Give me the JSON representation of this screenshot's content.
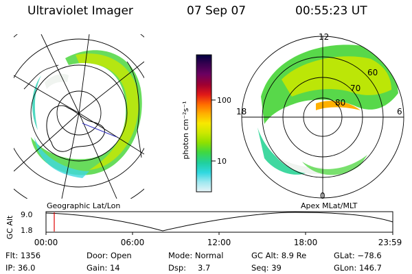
{
  "header": {
    "title": "Ultraviolet Imager",
    "date": "07 Sep 07",
    "time": "00:55:23 UT"
  },
  "left_panel": {
    "caption": "Geographic Lat/Lon"
  },
  "right_panel": {
    "caption": "Apex  MLat/MLT",
    "mlt_labels": {
      "top": "12",
      "left": "18",
      "right": "6",
      "bottom": "0"
    },
    "lat_labels": [
      "60",
      "70",
      "80"
    ]
  },
  "colorbar": {
    "unit_label": "photon cm⁻²s⁻¹",
    "tick_labels": [
      "100",
      "10"
    ],
    "colors": [
      "#000040",
      "#3a0050",
      "#6a0060",
      "#a00030",
      "#e01818",
      "#ff6a00",
      "#ffb000",
      "#f8e800",
      "#cce800",
      "#90e000",
      "#40d840",
      "#20d0a0",
      "#30d8e0",
      "#a0e8f0",
      "#e8f4f8"
    ]
  },
  "timeline": {
    "axis_label": "GC Alt",
    "y_max": "9.0",
    "y_min": "1.8",
    "ticks": [
      "00:00",
      "06:00",
      "12:00",
      "18:00",
      "23:59"
    ],
    "marker_color": "#e00000"
  },
  "footer": {
    "flt": "Flt: 1356",
    "ip": "IP: 36.0",
    "door": "Door: Open",
    "gain": "Gain: 14",
    "mode": "Mode: Normal",
    "dsp_label": "Dsp:",
    "dsp_value": "3.7",
    "gc_alt": "GC Alt: 8.9 Re",
    "seq": "Seq: 39",
    "glat": "GLat: −78.6",
    "glon": "GLon: 146.7"
  }
}
